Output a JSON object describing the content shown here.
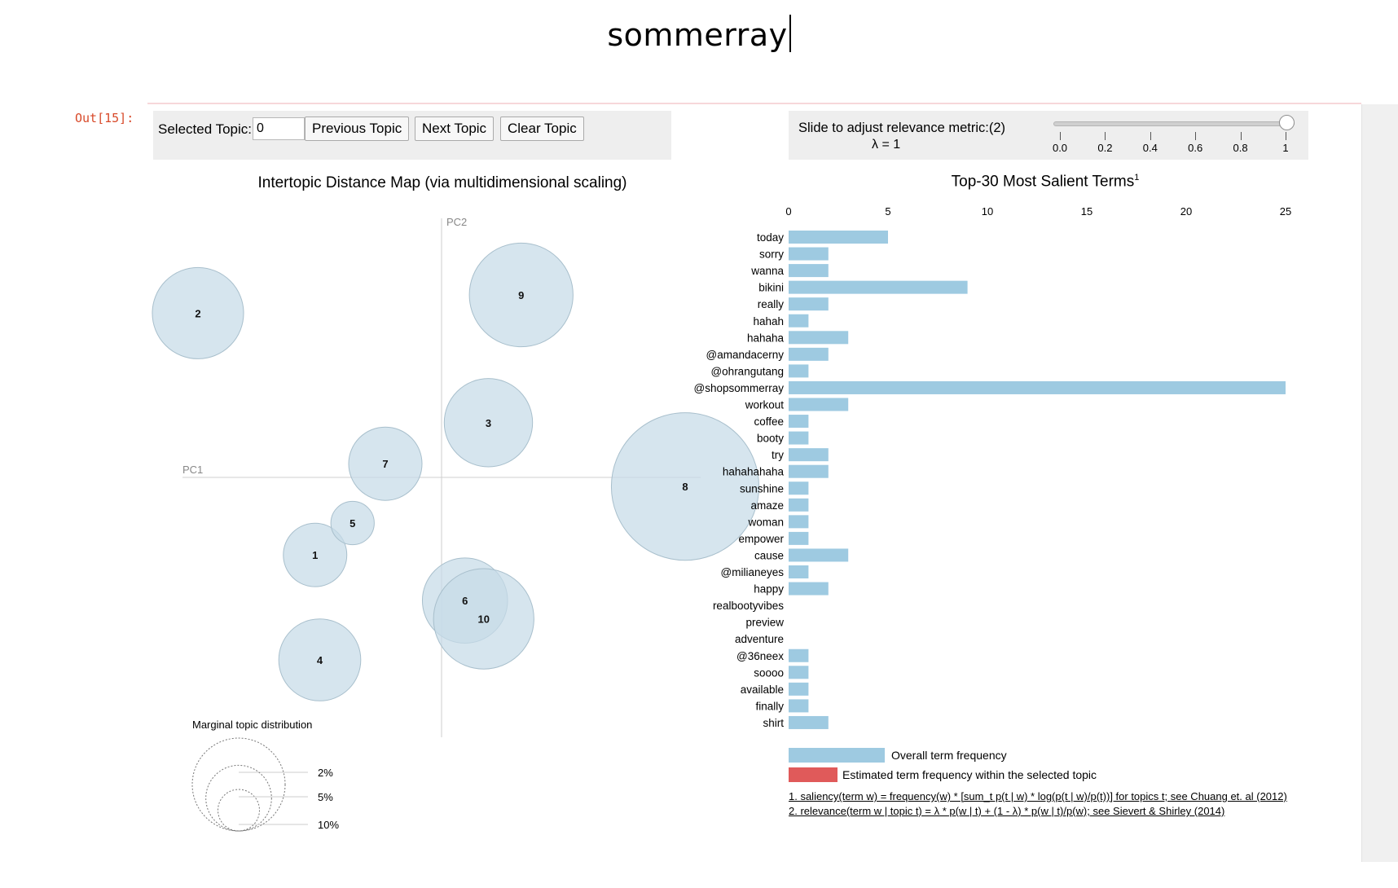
{
  "notebook": {
    "title": "sommerray",
    "out_prompt": "Out[15]:"
  },
  "controls": {
    "selected_topic_label": "Selected Topic:",
    "selected_topic_value": "0",
    "previous_label": "Previous Topic",
    "next_label": "Next Topic",
    "clear_label": "Clear Topic",
    "slider_label": "Slide to adjust relevance metric:(2)",
    "lambda_text": "λ = 1",
    "lambda_value": 1,
    "slider_ticks": [
      "0.0",
      "0.2",
      "0.4",
      "0.6",
      "0.8",
      "1"
    ]
  },
  "colors": {
    "bar": "#9ecae1",
    "topic_bar": "#e05a5a",
    "circle": "#c6dbe7",
    "circle_stroke": "#a8bfcc"
  },
  "chart_data": [
    {
      "type": "scatter",
      "title": "Intertopic Distance Map (via multidimensional scaling)",
      "xlabel": "PC1",
      "ylabel": "PC2",
      "topics": [
        {
          "id": "1",
          "x": -0.27,
          "y": -0.17,
          "size": 3.0
        },
        {
          "id": "2",
          "x": -0.52,
          "y": 0.36,
          "size": 6.2
        },
        {
          "id": "3",
          "x": 0.1,
          "y": 0.12,
          "size": 5.8
        },
        {
          "id": "4",
          "x": -0.26,
          "y": -0.4,
          "size": 5.0
        },
        {
          "id": "5",
          "x": -0.19,
          "y": -0.1,
          "size": 1.4
        },
        {
          "id": "6",
          "x": 0.05,
          "y": -0.27,
          "size": 5.4
        },
        {
          "id": "7",
          "x": -0.12,
          "y": 0.03,
          "size": 4.0
        },
        {
          "id": "8",
          "x": 0.52,
          "y": -0.02,
          "size": 16.2
        },
        {
          "id": "9",
          "x": 0.17,
          "y": 0.4,
          "size": 8.0
        },
        {
          "id": "10",
          "x": 0.09,
          "y": -0.31,
          "size": 7.5
        }
      ],
      "marginal": {
        "title": "Marginal topic distribution",
        "labels": [
          "2%",
          "5%",
          "10%"
        ],
        "values": [
          2,
          5,
          10
        ]
      }
    },
    {
      "type": "bar",
      "title": "Top-30 Most Salient Terms",
      "title_sup": "1",
      "xlim": [
        0,
        25
      ],
      "xticks": [
        "0",
        "5",
        "10",
        "15",
        "20",
        "25"
      ],
      "terms": [
        "today",
        "sorry",
        "wanna",
        "bikini",
        "really",
        "hahah",
        "hahaha",
        "@amandacerny",
        "@ohrangutang",
        "@shopsommerray",
        "workout",
        "coffee",
        "booty",
        "try",
        "hahahahaha",
        "sunshine",
        "amaze",
        "woman",
        "empower",
        "cause",
        "@milianeyes",
        "happy",
        "realbootyvibes",
        "preview",
        "adventure",
        "@36neex",
        "soooo",
        "available",
        "finally",
        "shirt"
      ],
      "values": [
        5,
        2,
        2,
        9,
        2,
        1,
        3,
        2,
        1,
        25,
        3,
        1,
        1,
        2,
        2,
        1,
        1,
        1,
        1,
        3,
        1,
        2,
        0,
        0,
        0,
        1,
        1,
        1,
        1,
        2
      ],
      "legend": {
        "overall": "Overall term frequency",
        "topic": "Estimated term frequency within the selected topic"
      },
      "footnotes": [
        "1. saliency(term w) = frequency(w) * [sum_t p(t | w) * log(p(t | w)/p(t))] for topics t; see Chuang et. al (2012)",
        "2. relevance(term w | topic t) = λ * p(w | t) + (1 - λ) * p(w | t)/p(w); see Sievert & Shirley (2014)"
      ]
    }
  ]
}
